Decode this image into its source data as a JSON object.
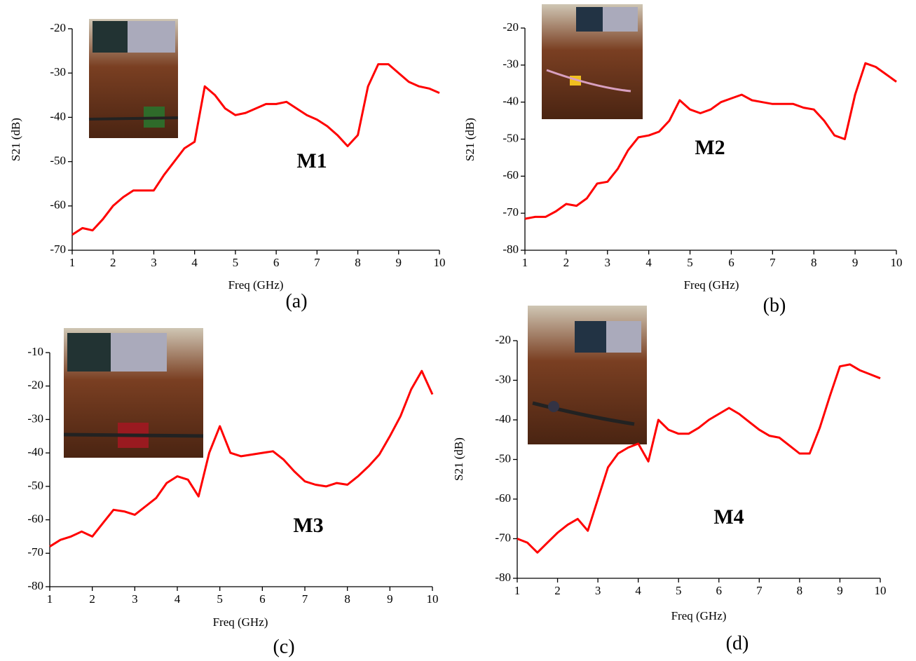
{
  "chart_data": [
    {
      "type": "line",
      "ylabel": "S21 (dB)",
      "xlabel": "Freq (GHz)",
      "label": "M1",
      "caption": "(a)",
      "color": "#ff0000",
      "x": [
        1,
        1.25,
        1.5,
        1.75,
        2,
        2.25,
        2.5,
        2.75,
        3,
        3.25,
        3.5,
        3.75,
        4,
        4.25,
        4.5,
        4.75,
        5,
        5.25,
        5.5,
        5.75,
        6,
        6.25,
        6.5,
        6.75,
        7,
        7.25,
        7.5,
        7.75,
        8,
        8.25,
        8.5,
        8.75,
        9,
        9.25,
        9.5,
        9.75,
        10
      ],
      "values": [
        -66.5,
        -65,
        -65.5,
        -63,
        -60,
        -58,
        -56.5,
        -56.5,
        -56.5,
        -53,
        -50,
        -47,
        -45.5,
        -33,
        -35,
        -38,
        -39.5,
        -39,
        -38,
        -37,
        -37,
        -36.5,
        -38,
        -39.5,
        -40.5,
        -42,
        -44,
        -46.5,
        -44,
        -33,
        -28,
        -28,
        -30,
        -32,
        -33,
        -33.5,
        -34.5
      ],
      "xlim": [
        1,
        10
      ],
      "ylim": [
        -70,
        -20
      ],
      "xticks": [
        1,
        2,
        3,
        4,
        5,
        6,
        7,
        8,
        9,
        10
      ],
      "yticks": [
        -70,
        -60,
        -50,
        -40,
        -30,
        -20
      ]
    },
    {
      "type": "line",
      "ylabel": "S21 (dB)",
      "xlabel": "Freq (GHz)",
      "label": "M2",
      "caption": "(b)",
      "color": "#ff0000",
      "x": [
        1,
        1.25,
        1.5,
        1.75,
        2,
        2.25,
        2.5,
        2.75,
        3,
        3.25,
        3.5,
        3.75,
        4,
        4.25,
        4.5,
        4.75,
        5,
        5.25,
        5.5,
        5.75,
        6,
        6.25,
        6.5,
        6.75,
        7,
        7.25,
        7.5,
        7.75,
        8,
        8.25,
        8.5,
        8.75,
        9,
        9.25,
        9.5,
        9.75,
        10
      ],
      "values": [
        -71.5,
        -71,
        -71,
        -69.5,
        -67.5,
        -68,
        -66,
        -62,
        -61.5,
        -58,
        -53,
        -49.5,
        -49,
        -48,
        -45,
        -39.5,
        -42,
        -43,
        -42,
        -40,
        -39,
        -38,
        -39.5,
        -40,
        -40.5,
        -40.5,
        -40.5,
        -41.5,
        -42,
        -45,
        -49,
        -50,
        -38,
        -29.5,
        -30.5,
        -32.5,
        -34.5
      ],
      "xlim": [
        1,
        10
      ],
      "ylim": [
        -80,
        -20
      ],
      "xticks": [
        1,
        2,
        3,
        4,
        5,
        6,
        7,
        8,
        9,
        10
      ],
      "yticks": [
        -80,
        -70,
        -60,
        -50,
        -40,
        -30,
        -20
      ]
    },
    {
      "type": "line",
      "xlabel": "Freq (GHz)",
      "label": "M3",
      "caption": "(c)",
      "color": "#ff0000",
      "x": [
        1,
        1.25,
        1.5,
        1.75,
        2,
        2.25,
        2.5,
        2.75,
        3,
        3.25,
        3.5,
        3.75,
        4,
        4.25,
        4.5,
        4.75,
        5,
        5.25,
        5.5,
        5.75,
        6,
        6.25,
        6.5,
        6.75,
        7,
        7.25,
        7.5,
        7.75,
        8,
        8.25,
        8.5,
        8.75,
        9,
        9.25,
        9.5,
        9.75,
        10
      ],
      "values": [
        -68,
        -66,
        -65,
        -63.5,
        -65,
        -61,
        -57,
        -57.5,
        -58.5,
        -56,
        -53.5,
        -49,
        -47,
        -48,
        -53,
        -40,
        -32,
        -40,
        -41,
        -40.5,
        -40,
        -39.5,
        -42,
        -45.5,
        -48.5,
        -49.5,
        -50,
        -49,
        -49.5,
        -47,
        -44,
        -40.5,
        -35,
        -29,
        -21,
        -15.5,
        -22.5
      ],
      "xlim": [
        1,
        10
      ],
      "ylim": [
        -80,
        -10
      ],
      "xticks": [
        1,
        2,
        3,
        4,
        5,
        6,
        7,
        8,
        9,
        10
      ],
      "yticks": [
        -80,
        -70,
        -60,
        -50,
        -40,
        -30,
        -20,
        -10
      ]
    },
    {
      "type": "line",
      "ylabel": "S21 (dB)",
      "xlabel": "Freq (GHz)",
      "label": "M4",
      "caption": "(d)",
      "color": "#ff0000",
      "x": [
        1,
        1.25,
        1.5,
        1.75,
        2,
        2.25,
        2.5,
        2.75,
        3,
        3.25,
        3.5,
        3.75,
        4,
        4.25,
        4.5,
        4.75,
        5,
        5.25,
        5.5,
        5.75,
        6,
        6.25,
        6.5,
        6.75,
        7,
        7.25,
        7.5,
        7.75,
        8,
        8.25,
        8.5,
        8.75,
        9,
        9.25,
        9.5,
        9.75,
        10
      ],
      "values": [
        -70,
        -71,
        -73.5,
        -71,
        -68.5,
        -66.5,
        -65,
        -68,
        -60,
        -52,
        -48.5,
        -47,
        -46,
        -50.5,
        -40,
        -42.5,
        -43.5,
        -43.5,
        -42,
        -40,
        -38.5,
        -37,
        -38.5,
        -40.5,
        -42.5,
        -44,
        -44.5,
        -46.5,
        -48.5,
        -48.5,
        -42,
        -34,
        -26.5,
        -26,
        -27.5,
        -28.5,
        -29.5
      ],
      "xlim": [
        1,
        10
      ],
      "ylim": [
        -80,
        -20
      ],
      "xticks": [
        1,
        2,
        3,
        4,
        5,
        6,
        7,
        8,
        9,
        10
      ],
      "yticks": [
        -80,
        -70,
        -60,
        -50,
        -40,
        -30,
        -20
      ]
    }
  ]
}
